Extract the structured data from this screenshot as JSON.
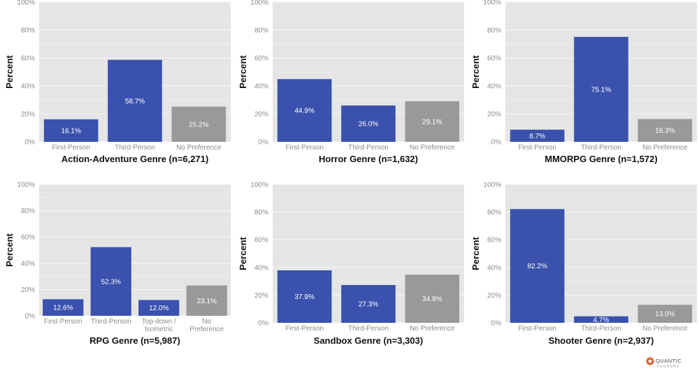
{
  "colors": {
    "perspective": "#3a52ad",
    "no_preference": "#999999",
    "panel_bg": "#e5e5e5",
    "grid": "#f7f7f7",
    "logo": "#e0582a"
  },
  "logo": {
    "name": "QUANTIC",
    "sub": "FOUNDRY"
  },
  "chart_data": [
    {
      "type": "bar",
      "title": "Action-Adventure Genre (n=6,271)",
      "ylabel": "Percent",
      "ylim": [
        0,
        100
      ],
      "yticks": [
        "0%",
        "20%",
        "40%",
        "60%",
        "80%",
        "100%"
      ],
      "categories": [
        [
          "First-Person"
        ],
        [
          "Third-Person"
        ],
        [
          "No Preference"
        ]
      ],
      "values": [
        16.1,
        58.7,
        25.2
      ],
      "value_labels": [
        "16.1%",
        "58.7%",
        "25.2%"
      ],
      "bar_colors": [
        "perspective",
        "perspective",
        "no_preference"
      ]
    },
    {
      "type": "bar",
      "title": "Horror Genre (n=1,632)",
      "ylabel": "Percent",
      "ylim": [
        0,
        100
      ],
      "yticks": [
        "0%",
        "20%",
        "40%",
        "60%",
        "80%",
        "100%"
      ],
      "categories": [
        [
          "First-Person"
        ],
        [
          "Third-Person"
        ],
        [
          "No Preference"
        ]
      ],
      "values": [
        44.9,
        26.0,
        29.1
      ],
      "value_labels": [
        "44.9%",
        "26.0%",
        "29.1%"
      ],
      "bar_colors": [
        "perspective",
        "perspective",
        "no_preference"
      ]
    },
    {
      "type": "bar",
      "title": "MMORPG Genre (n=1,572)",
      "ylabel": "Percent",
      "ylim": [
        0,
        100
      ],
      "yticks": [
        "0%",
        "20%",
        "40%",
        "60%",
        "80%",
        "100%"
      ],
      "categories": [
        [
          "First-Person"
        ],
        [
          "Third-Person"
        ],
        [
          "No Preference"
        ]
      ],
      "values": [
        8.7,
        75.1,
        16.3
      ],
      "value_labels": [
        "8.7%",
        "75.1%",
        "16.3%"
      ],
      "bar_colors": [
        "perspective",
        "perspective",
        "no_preference"
      ]
    },
    {
      "type": "bar",
      "title": "RPG Genre (n=5,987)",
      "ylabel": "Percent",
      "ylim": [
        0,
        100
      ],
      "yticks": [
        "0%",
        "20%",
        "40%",
        "60%",
        "80%",
        "100%"
      ],
      "categories": [
        [
          "First-Person"
        ],
        [
          "Third-Person"
        ],
        [
          "Top-down /",
          "Isometric"
        ],
        [
          "No",
          "Preference"
        ]
      ],
      "values": [
        12.6,
        52.3,
        12.0,
        23.1
      ],
      "value_labels": [
        "12.6%",
        "52.3%",
        "12.0%",
        "23.1%"
      ],
      "bar_colors": [
        "perspective",
        "perspective",
        "perspective",
        "no_preference"
      ]
    },
    {
      "type": "bar",
      "title": "Sandbox Genre (n=3,303)",
      "ylabel": "Percent",
      "ylim": [
        0,
        100
      ],
      "yticks": [
        "0%",
        "20%",
        "40%",
        "60%",
        "80%",
        "100%"
      ],
      "categories": [
        [
          "First-Person"
        ],
        [
          "Third-Person"
        ],
        [
          "No Preference"
        ]
      ],
      "values": [
        37.9,
        27.3,
        34.8
      ],
      "value_labels": [
        "37.9%",
        "27.3%",
        "34.8%"
      ],
      "bar_colors": [
        "perspective",
        "perspective",
        "no_preference"
      ]
    },
    {
      "type": "bar",
      "title": "Shooter Genre (n=2,937)",
      "ylabel": "Percent",
      "ylim": [
        0,
        100
      ],
      "yticks": [
        "0%",
        "20%",
        "40%",
        "60%",
        "80%",
        "100%"
      ],
      "categories": [
        [
          "First-Person"
        ],
        [
          "Third-Person"
        ],
        [
          "No Preference"
        ]
      ],
      "values": [
        82.2,
        4.7,
        13.0
      ],
      "value_labels": [
        "82.2%",
        "4.7%",
        "13.0%"
      ],
      "bar_colors": [
        "perspective",
        "perspective",
        "no_preference"
      ]
    }
  ]
}
